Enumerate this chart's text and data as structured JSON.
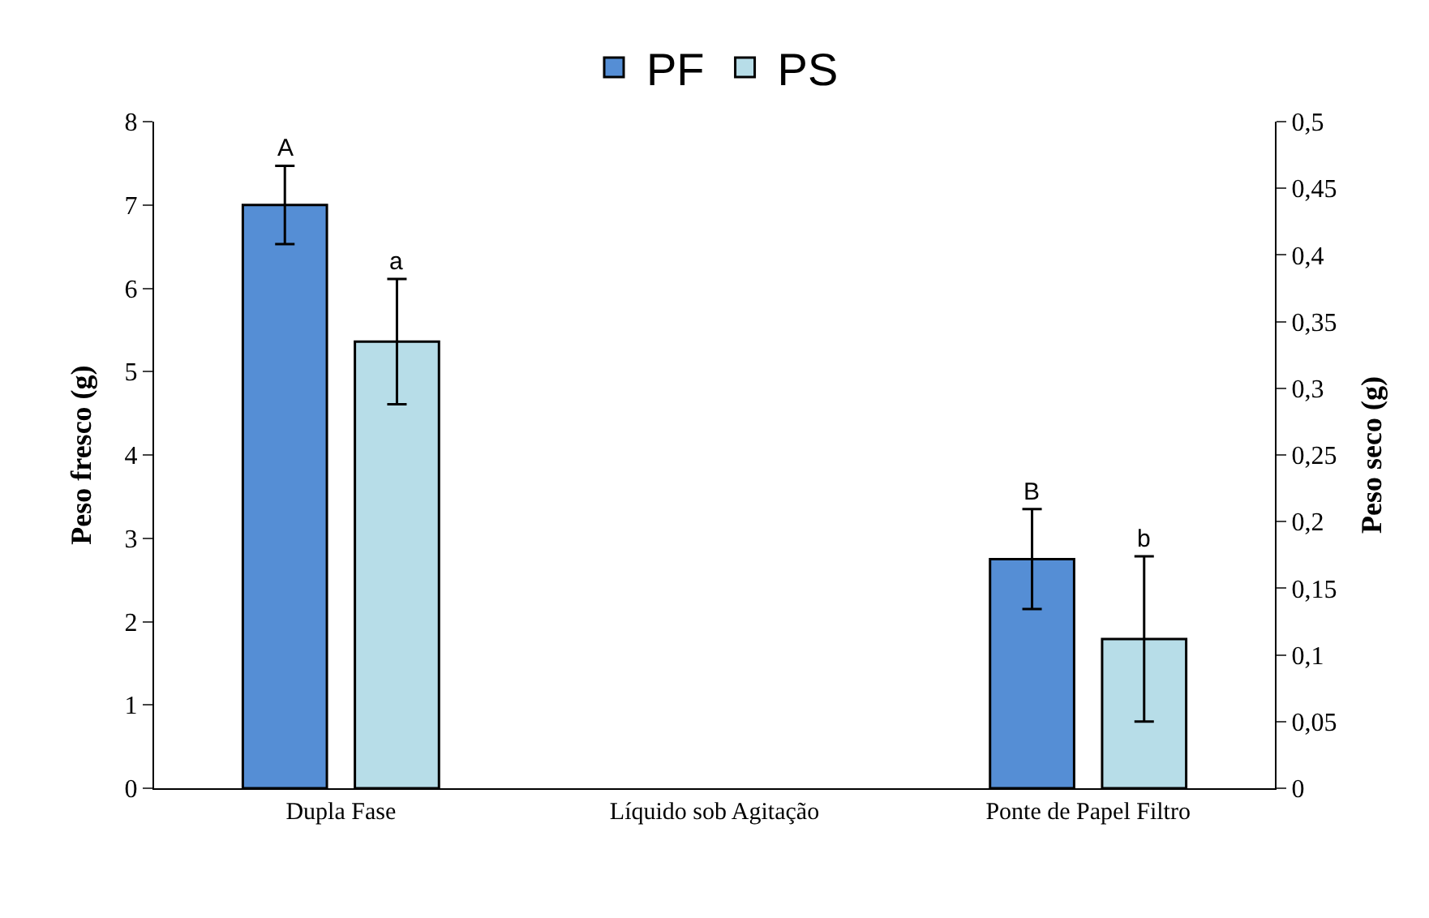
{
  "chart_data": {
    "type": "bar",
    "categories": [
      "Dupla Fase",
      "Líquido sob Agitação",
      "Ponte de Papel Filtro"
    ],
    "ylabel": "Peso fresco (g)",
    "y2label": "Peso seco (g)",
    "series": [
      {
        "name": "PF",
        "color": "#558ed5",
        "values": [
          7.0,
          null,
          2.75
        ],
        "errors": [
          0.47,
          null,
          0.6
        ]
      },
      {
        "name": "PS",
        "color": "#b7dde8",
        "axis": "y2",
        "values": [
          0.335,
          null,
          0.112
        ],
        "errors": [
          0.047,
          null,
          0.062
        ]
      }
    ],
    "annotations": [
      "A",
      "a",
      "B",
      "b"
    ],
    "ylim": [
      0,
      8
    ],
    "yticks": [
      0,
      1,
      2,
      3,
      4,
      5,
      6,
      7,
      8
    ],
    "y2lim": [
      0,
      0.5
    ],
    "y2ticks": [
      {
        "value": 0,
        "label": "0"
      },
      {
        "value": 0.05,
        "label": "0,05"
      },
      {
        "value": 0.1,
        "label": "0,1"
      },
      {
        "value": 0.15,
        "label": "0,15"
      },
      {
        "value": 0.2,
        "label": "0,2"
      },
      {
        "value": 0.25,
        "label": "0,25"
      },
      {
        "value": 0.3,
        "label": "0,3"
      },
      {
        "value": 0.35,
        "label": "0,35"
      },
      {
        "value": 0.4,
        "label": "0,4"
      },
      {
        "value": 0.45,
        "label": "0,45"
      },
      {
        "value": 0.5,
        "label": "0,5"
      }
    ],
    "legend": "top"
  }
}
